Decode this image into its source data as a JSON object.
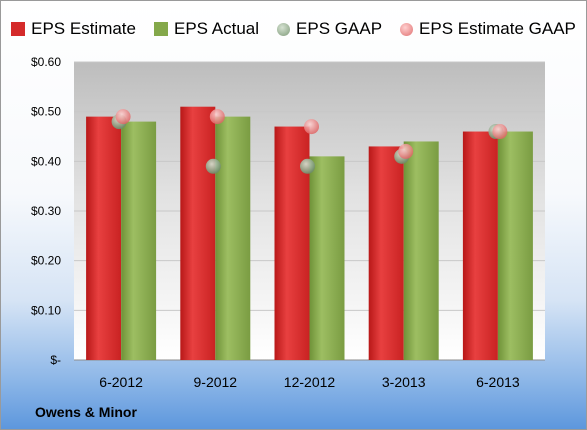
{
  "chart_data": {
    "type": "bar",
    "categories": [
      "6-2012",
      "9-2012",
      "12-2012",
      "3-2013",
      "6-2013"
    ],
    "series": [
      {
        "name": "EPS Estimate",
        "kind": "bar",
        "color": "#d42a2a",
        "values": [
          0.49,
          0.51,
          0.47,
          0.43,
          0.46
        ]
      },
      {
        "name": "EPS Actual",
        "kind": "bar",
        "color": "#84a84a",
        "values": [
          0.48,
          0.49,
          0.41,
          0.44,
          0.46
        ]
      },
      {
        "name": "EPS GAAP",
        "kind": "marker",
        "color": "#8fa88a",
        "values": [
          0.48,
          0.39,
          0.39,
          0.41,
          0.46
        ]
      },
      {
        "name": "EPS Estimate GAAP",
        "kind": "marker",
        "color": "#f08a8a",
        "values": [
          0.49,
          0.49,
          0.47,
          0.42,
          0.46
        ]
      }
    ],
    "yticks": [
      "$-",
      "$0.10",
      "$0.20",
      "$0.30",
      "$0.40",
      "$0.50",
      "$0.60"
    ],
    "ylim": [
      0,
      0.6
    ],
    "grid": true,
    "legend": "top"
  },
  "company": "Owens & Minor"
}
